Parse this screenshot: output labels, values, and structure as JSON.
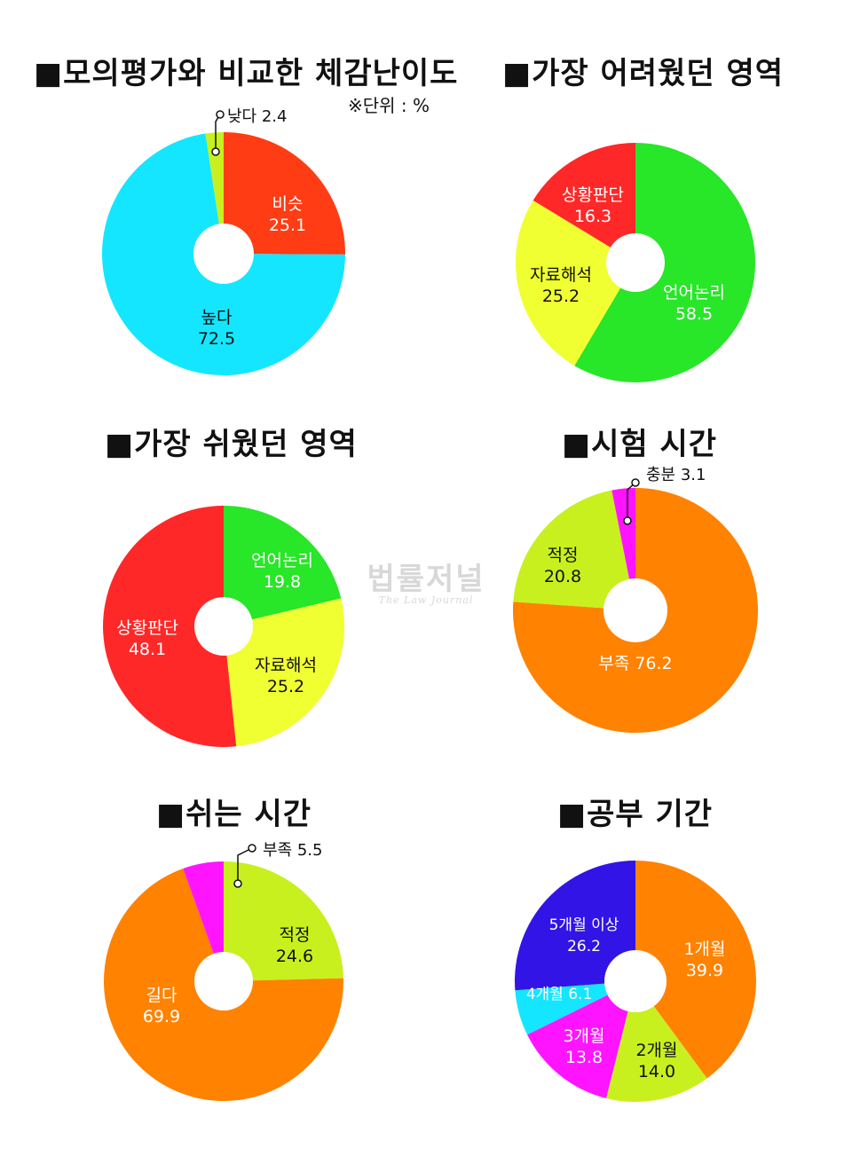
{
  "unit_note": "※단위 : %",
  "watermark": {
    "main": "법률저널",
    "sub": "The Law Journal"
  },
  "chart_data": [
    {
      "type": "pie",
      "title": "■모의평가와 비교한 체감난이도",
      "slices": [
        {
          "label": "비슷",
          "value": 25.1,
          "color": "#ff3c14"
        },
        {
          "label": "높다",
          "value": 72.5,
          "color": "#14e6ff"
        },
        {
          "label": "낮다",
          "value": 2.4,
          "color": "#c8f01e"
        }
      ]
    },
    {
      "type": "pie",
      "title": "■가장 어려웠던 영역",
      "slices": [
        {
          "label": "언어논리",
          "value": 58.5,
          "color": "#28e628"
        },
        {
          "label": "자료해석",
          "value": 25.2,
          "color": "#f0ff32"
        },
        {
          "label": "상황판단",
          "value": 16.3,
          "color": "#ff2828"
        }
      ]
    },
    {
      "type": "pie",
      "title": "■가장 쉬웠던 영역",
      "slices": [
        {
          "label": "언어논리",
          "value": 19.8,
          "color": "#28e628"
        },
        {
          "label": "자료해석",
          "value": 25.2,
          "color": "#f0ff32"
        },
        {
          "label": "상황판단",
          "value": 48.1,
          "color": "#ff2828"
        }
      ]
    },
    {
      "type": "pie",
      "title": "■시험 시간",
      "slices": [
        {
          "label": "부족",
          "value": 76.2,
          "color": "#ff8200"
        },
        {
          "label": "적정",
          "value": 20.8,
          "color": "#c8f01e"
        },
        {
          "label": "충분",
          "value": 3.1,
          "color": "#ff14ff"
        }
      ]
    },
    {
      "type": "pie",
      "title": "■쉬는 시간",
      "slices": [
        {
          "label": "적정",
          "value": 24.6,
          "color": "#c8f01e"
        },
        {
          "label": "길다",
          "value": 69.9,
          "color": "#ff8200"
        },
        {
          "label": "부족",
          "value": 5.5,
          "color": "#ff14ff"
        }
      ]
    },
    {
      "type": "pie",
      "title": "■공부 기간",
      "slices": [
        {
          "label": "1개월",
          "value": 39.9,
          "color": "#ff8200"
        },
        {
          "label": "2개월",
          "value": 14.0,
          "color": "#c8f01e"
        },
        {
          "label": "3개월",
          "value": 13.8,
          "color": "#ff14ff"
        },
        {
          "label": "4개월",
          "value": 6.1,
          "color": "#14e6ff"
        },
        {
          "label": "5개월 이상",
          "value": 26.2,
          "color": "#3214e6"
        }
      ]
    }
  ]
}
